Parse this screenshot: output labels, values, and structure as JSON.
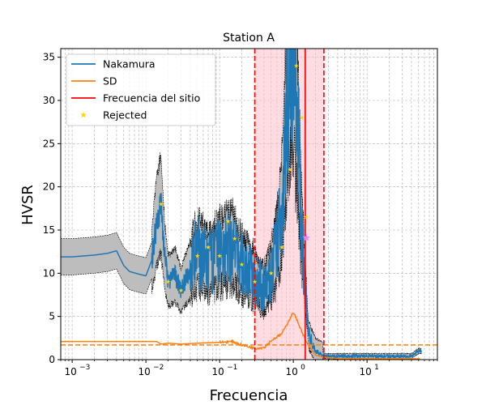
{
  "chart_data": {
    "type": "line",
    "title": "Station A",
    "xlabel": "Frecuencia",
    "ylabel": "HVSR",
    "xscale": "log",
    "xlim": [
      0.0007,
      90
    ],
    "ylim": [
      0,
      36
    ],
    "grid": true,
    "legend_position": "top-left",
    "x_ticks": [
      0.001,
      0.01,
      0.1,
      1,
      10
    ],
    "x_tick_labels": [
      "10",
      "10",
      "10",
      "10",
      "10"
    ],
    "x_tick_exponents": [
      "−3",
      "−2",
      "−1",
      "0",
      "1"
    ],
    "y_ticks": [
      0,
      5,
      10,
      15,
      20,
      25,
      30,
      35
    ],
    "y_tick_labels": [
      "0",
      "5",
      "10",
      "15",
      "20",
      "25",
      "30",
      "35"
    ],
    "colors": {
      "nakamura": "#1f77b4",
      "sd": "#ff7f0e",
      "site_frequency": "#ff0000",
      "rejected": "#ffd700",
      "band_fill": "#ffc0cb",
      "envelope_fill": "#bdbdbd"
    },
    "series": [
      {
        "name": "Nakamura",
        "x": [
          0.0007,
          0.001,
          0.002,
          0.003,
          0.004,
          0.005,
          0.006,
          0.008,
          0.01,
          0.012,
          0.014,
          0.016,
          0.018,
          0.02,
          0.025,
          0.03,
          0.04,
          0.05,
          0.07,
          0.1,
          0.15,
          0.2,
          0.3,
          0.4,
          0.5,
          0.6,
          0.7,
          0.8,
          0.9,
          1.0,
          1.1,
          1.3,
          1.6,
          2.0,
          2.5,
          3,
          5,
          10,
          20,
          40,
          50
        ],
        "y": [
          11.9,
          11.9,
          12.1,
          12.3,
          12.6,
          10.9,
          10.2,
          9.9,
          9.7,
          11.5,
          16.0,
          18.0,
          12.0,
          9.1,
          9.8,
          8.0,
          10.5,
          12.6,
          11.0,
          12.5,
          13.0,
          11.0,
          9.5,
          8.0,
          10.0,
          13.0,
          18.0,
          28.0,
          36.0,
          36.0,
          30.0,
          15.0,
          3.0,
          1.0,
          0.5,
          0.4,
          0.4,
          0.4,
          0.4,
          0.4,
          1.0
        ]
      },
      {
        "name": "SD",
        "x": [
          0.0007,
          0.001,
          0.01,
          0.014,
          0.016,
          0.02,
          0.03,
          0.05,
          0.1,
          0.15,
          0.2,
          0.3,
          0.4,
          0.5,
          0.7,
          1.0,
          1.2,
          1.5,
          2.0,
          2.5,
          3,
          5,
          10,
          50
        ],
        "y": [
          2.1,
          2.1,
          2.1,
          2.1,
          1.8,
          1.9,
          1.8,
          1.9,
          2.0,
          2.1,
          1.7,
          1.3,
          1.4,
          2.2,
          3.0,
          5.5,
          4.0,
          2.0,
          0.5,
          0.3,
          0.2,
          0.1,
          0.1,
          0.1
        ]
      },
      {
        "name": "Frecuencia del sitio",
        "value": 1.45
      },
      {
        "name": "Rejected",
        "x": [
          0.016,
          0.02,
          0.03,
          0.05,
          0.07,
          0.1,
          0.13,
          0.16,
          0.2,
          0.3,
          0.5,
          0.7,
          0.9,
          1.1,
          1.3,
          1.5
        ],
        "y": [
          18.0,
          9.0,
          8.0,
          12.0,
          13.0,
          12.0,
          16.0,
          14.0,
          11.0,
          9.0,
          10.0,
          13.0,
          22.0,
          34.0,
          28.0,
          16.5
        ]
      }
    ],
    "site_frequency_band": [
      0.3,
      2.6
    ],
    "sd_threshold": 1.7,
    "annotations": [
      {
        "type": "star",
        "x": 1.5,
        "y": 14.1,
        "color": "#ee82ee"
      }
    ]
  }
}
